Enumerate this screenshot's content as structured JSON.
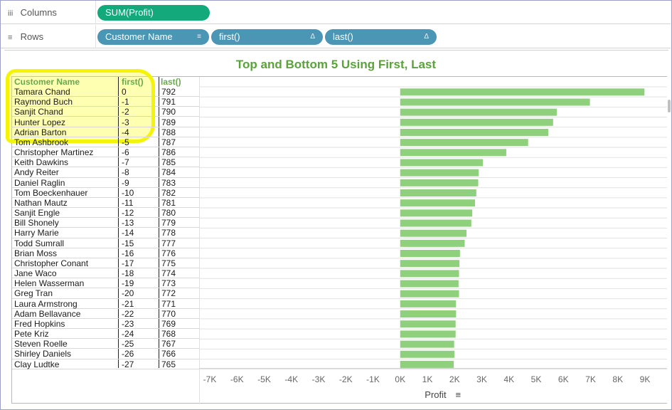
{
  "shelves": {
    "columns": {
      "label": "Columns",
      "icon": "iii",
      "pills": [
        {
          "label": "SUM(Profit)",
          "color": "#13a97b"
        }
      ]
    },
    "rows": {
      "label": "Rows",
      "icon": "≡",
      "pills": [
        {
          "label": "Customer Name",
          "icon": "sort-icon",
          "color": "#4a96b4"
        },
        {
          "label": "first()",
          "icon": "delta-icon",
          "color": "#4a96b4"
        },
        {
          "label": "last()",
          "icon": "delta-icon",
          "color": "#4a96b4"
        }
      ]
    }
  },
  "chart_data": {
    "type": "bar",
    "title": "Top and Bottom 5 Using First, Last",
    "row_headers": [
      "Customer Name",
      "first()",
      "last()"
    ],
    "xlabel": "Profit",
    "xlim": [
      -7500,
      9500
    ],
    "xticks": [
      -7000,
      -6000,
      -5000,
      -4000,
      -3000,
      -2000,
      -1000,
      0,
      1000,
      2000,
      3000,
      4000,
      5000,
      6000,
      7000,
      8000,
      9000
    ],
    "xtick_labels": [
      "-7K",
      "-6K",
      "-5K",
      "-4K",
      "-3K",
      "-2K",
      "-1K",
      "0K",
      "1K",
      "2K",
      "3K",
      "4K",
      "5K",
      "6K",
      "7K",
      "8K",
      "9K"
    ],
    "bar_color": "#8fd07c",
    "rows": [
      {
        "name": "Tamara Chand",
        "first": "0",
        "last": "792",
        "value": 8981
      },
      {
        "name": "Raymond Buch",
        "first": "-1",
        "last": "791",
        "value": 6976
      },
      {
        "name": "Sanjit Chand",
        "first": "-2",
        "last": "790",
        "value": 5757
      },
      {
        "name": "Hunter Lopez",
        "first": "-3",
        "last": "789",
        "value": 5622
      },
      {
        "name": "Adrian Barton",
        "first": "-4",
        "last": "788",
        "value": 5445
      },
      {
        "name": "Tom Ashbrook",
        "first": "-5",
        "last": "787",
        "value": 4704
      },
      {
        "name": "Christopher Martinez",
        "first": "-6",
        "last": "786",
        "value": 3900
      },
      {
        "name": "Keith Dawkins",
        "first": "-7",
        "last": "785",
        "value": 3039
      },
      {
        "name": "Andy Reiter",
        "first": "-8",
        "last": "784",
        "value": 2885
      },
      {
        "name": "Daniel Raglin",
        "first": "-9",
        "last": "783",
        "value": 2870
      },
      {
        "name": "Tom Boeckenhauer",
        "first": "-10",
        "last": "782",
        "value": 2799
      },
      {
        "name": "Nathan Mautz",
        "first": "-11",
        "last": "781",
        "value": 2751
      },
      {
        "name": "Sanjit Engle",
        "first": "-12",
        "last": "780",
        "value": 2650
      },
      {
        "name": "Bill Shonely",
        "first": "-13",
        "last": "779",
        "value": 2616
      },
      {
        "name": "Harry Marie",
        "first": "-14",
        "last": "778",
        "value": 2438
      },
      {
        "name": "Todd Sumrall",
        "first": "-15",
        "last": "777",
        "value": 2372
      },
      {
        "name": "Brian Moss",
        "first": "-16",
        "last": "776",
        "value": 2199
      },
      {
        "name": "Christopher Conant",
        "first": "-17",
        "last": "775",
        "value": 2177
      },
      {
        "name": "Jane Waco",
        "first": "-18",
        "last": "774",
        "value": 2163
      },
      {
        "name": "Helen Wasserman",
        "first": "-19",
        "last": "773",
        "value": 2147
      },
      {
        "name": "Greg Tran",
        "first": "-20",
        "last": "772",
        "value": 2163
      },
      {
        "name": "Laura Armstrong",
        "first": "-21",
        "last": "771",
        "value": 2052
      },
      {
        "name": "Adam Bellavance",
        "first": "-22",
        "last": "770",
        "value": 2055
      },
      {
        "name": "Fred Hopkins",
        "first": "-23",
        "last": "769",
        "value": 2038
      },
      {
        "name": "Pete Kriz",
        "first": "-24",
        "last": "768",
        "value": 2038
      },
      {
        "name": "Steven Roelle",
        "first": "-25",
        "last": "767",
        "value": 1984
      },
      {
        "name": "Shirley Daniels",
        "first": "-26",
        "last": "766",
        "value": 1996
      },
      {
        "name": "Clay Ludtke",
        "first": "-27",
        "last": "765",
        "value": 1970
      }
    ]
  }
}
